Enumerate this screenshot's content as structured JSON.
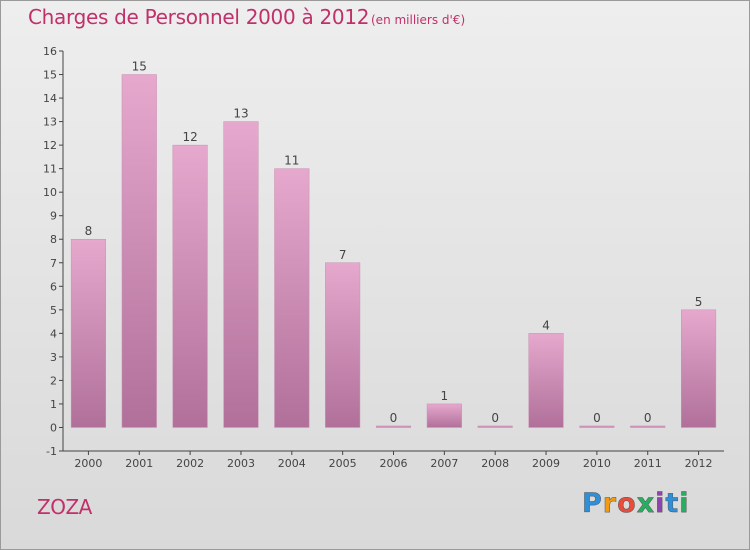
{
  "title": "Charges de Personnel 2000 à 2012",
  "subtitle": "(en milliers d'€)",
  "commune": "ZOZA",
  "logo": {
    "letters": [
      "P",
      "r",
      "o",
      "x",
      "i",
      "t",
      "i"
    ],
    "colors": [
      "#2f8fd8",
      "#f39c12",
      "#e74c3c",
      "#27ae60",
      "#8e44ad",
      "#2f8fd8",
      "#27ae60"
    ]
  },
  "colors": {
    "bar_top": "#e6a8cd",
    "bar_bottom": "#b0709a",
    "text": "#c0306a",
    "axis": "#444444"
  },
  "chart_data": {
    "type": "bar",
    "categories": [
      "2000",
      "2001",
      "2002",
      "2003",
      "2004",
      "2005",
      "2006",
      "2007",
      "2008",
      "2009",
      "2010",
      "2011",
      "2012"
    ],
    "values": [
      8,
      15,
      12,
      13,
      11,
      7,
      0,
      1,
      0,
      4,
      0,
      0,
      5
    ],
    "ylim": [
      -1,
      16
    ],
    "yticks": [
      -1,
      0,
      1,
      2,
      3,
      4,
      5,
      6,
      7,
      8,
      9,
      10,
      11,
      12,
      13,
      14,
      15,
      16
    ],
    "grid": false,
    "title": "Charges de Personnel 2000 à 2012",
    "xlabel": "",
    "ylabel": ""
  }
}
